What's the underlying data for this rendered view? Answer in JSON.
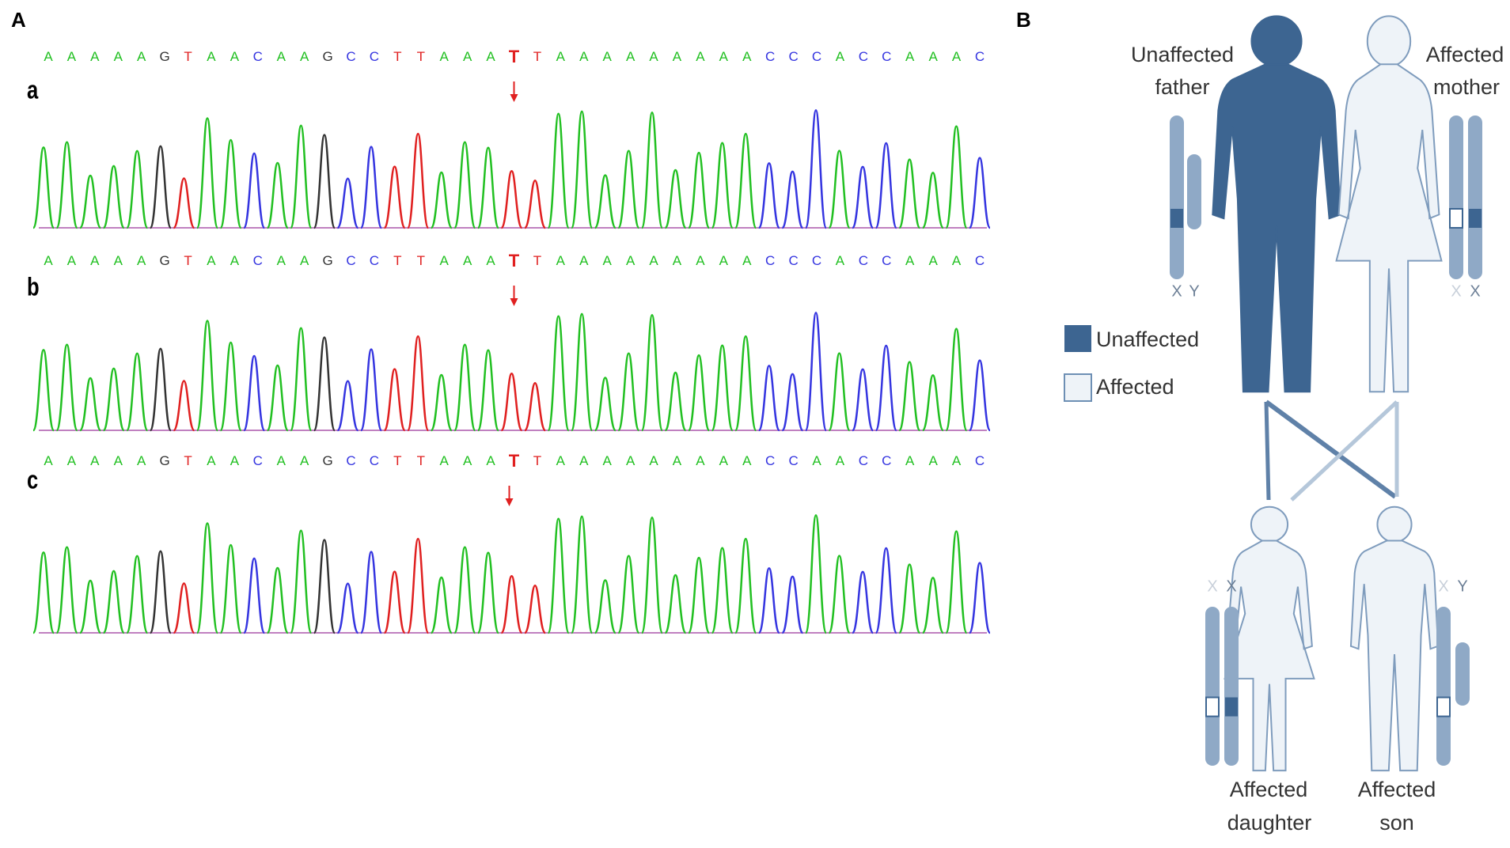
{
  "panel_a": {
    "label": "A",
    "rows": [
      {
        "label": "a",
        "sequence": "AAAAAGTAACAAGCCTTAAATTAAAAAAAAACCCACCAAAC"
      },
      {
        "label": "b",
        "sequence": "AAAAAGTAACAAGCCTTAAATTAAAAAAAAACCCACCAAAC"
      },
      {
        "label": "c",
        "sequence": "AAAAAGTAACAAGCCTTAAATTAAAAAAAAACCAACCAAAC"
      }
    ]
  },
  "panel_b": {
    "label": "B",
    "father": {
      "line1": "Unaffected",
      "line2": "father",
      "chromosomes": [
        "X",
        "Y"
      ]
    },
    "mother": {
      "line1": "Affected",
      "line2": "mother",
      "chromosomes": [
        "X",
        "X"
      ]
    },
    "daughter": {
      "line1": "Affected",
      "line2": "daughter",
      "chromosomes": [
        "X",
        "X"
      ]
    },
    "son": {
      "line1": "Affected",
      "line2": "son",
      "chromosomes": [
        "X",
        "Y"
      ]
    },
    "legend": [
      "Unaffected",
      "Affected"
    ]
  }
}
